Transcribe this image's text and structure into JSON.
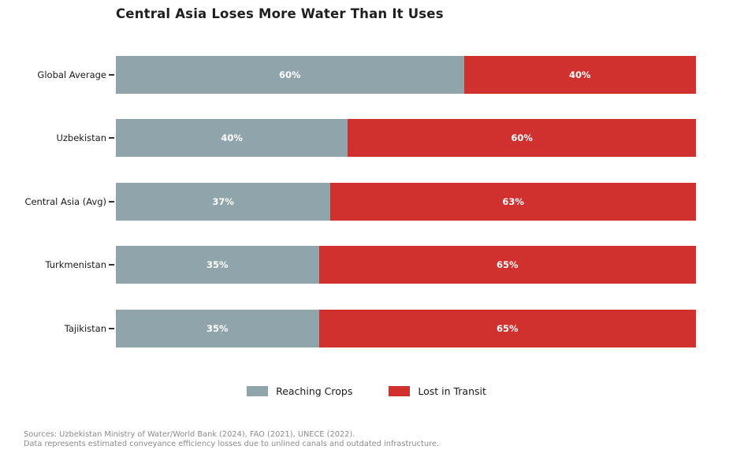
{
  "title": "Central Asia Loses More Water Than It Uses",
  "chart_data": {
    "type": "bar",
    "orientation": "horizontal",
    "stacked": true,
    "title": "Central Asia Loses More Water Than It Uses",
    "categories": [
      "Global Average",
      "Uzbekistan",
      "Central Asia (Avg)",
      "Turkmenistan",
      "Tajikistan"
    ],
    "series": [
      {
        "name": "Reaching Crops",
        "color": "#90a4ac",
        "values": [
          60,
          40,
          37,
          35,
          35
        ]
      },
      {
        "name": "Lost in Transit",
        "color": "#d0302e",
        "values": [
          40,
          60,
          63,
          65,
          65
        ]
      }
    ],
    "value_labels": [
      [
        "60%",
        "40%"
      ],
      [
        "40%",
        "60%"
      ],
      [
        "37%",
        "63%"
      ],
      [
        "35%",
        "65%"
      ],
      [
        "35%",
        "65%"
      ]
    ],
    "xlabel": "",
    "ylabel": "",
    "xlim": [
      0,
      100
    ],
    "grid": false,
    "legend_position": "bottom"
  },
  "legend": {
    "items": [
      {
        "label": "Reaching Crops",
        "color": "#90a4ac"
      },
      {
        "label": "Lost in Transit",
        "color": "#d0302e"
      }
    ]
  },
  "footer": {
    "line1": "Sources: Uzbekistan Ministry of Water/World Bank (2024), FAO (2021), UNECE (2022).",
    "line2": "Data represents estimated conveyance efficiency losses due to unlined canals and outdated infrastructure."
  }
}
